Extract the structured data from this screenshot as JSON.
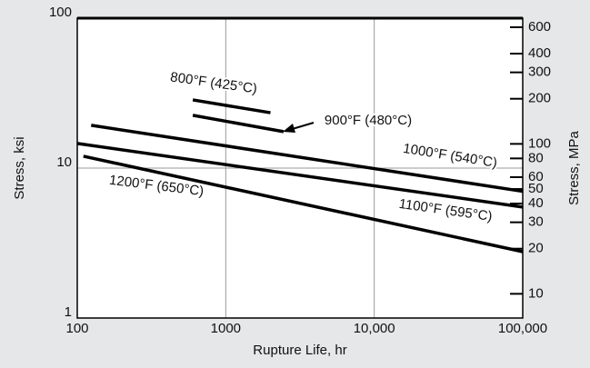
{
  "chart_data": {
    "type": "line",
    "xlabel": "Rupture Life, hr",
    "ylabel": "Stress, ksi",
    "y2label": "Stress, MPa",
    "xscale": "log",
    "yscale": "log",
    "y2scale": "log",
    "xlim": [
      100,
      100000
    ],
    "ylim": [
      1,
      100
    ],
    "y2lim": [
      6.895,
      689.5
    ],
    "xticks": [
      100,
      1000,
      {
        "value": 10000,
        "label": "10,000"
      },
      {
        "value": 100000,
        "label": "100,000"
      }
    ],
    "yticks": [
      1,
      10,
      100
    ],
    "y2ticks": [
      600,
      400,
      300,
      200,
      100,
      80,
      60,
      50,
      40,
      30,
      20,
      10
    ],
    "grid": true,
    "series": [
      {
        "name": "800°F (425°C)",
        "color": "#000000",
        "x": [
          600,
          2000
        ],
        "values": [
          28.5,
          23.4
        ]
      },
      {
        "name": "900°F (480°C)",
        "color": "#000000",
        "x": [
          600,
          2450
        ],
        "values": [
          22.5,
          17.5
        ]
      },
      {
        "name": "1000°F (540°C)",
        "color": "#000000",
        "x": [
          124,
          100000
        ],
        "values": [
          19.3,
          7.0
        ]
      },
      {
        "name": "1100°F (595°C)",
        "color": "#000000",
        "x": [
          100,
          100000
        ],
        "values": [
          14.6,
          5.5
        ]
      },
      {
        "name": "1200°F (650°C)",
        "color": "#000000",
        "x": [
          110,
          100000
        ],
        "values": [
          12,
          2.77
        ]
      }
    ]
  }
}
